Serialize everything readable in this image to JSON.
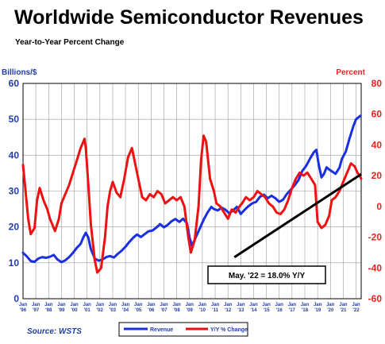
{
  "title": "Worldwide Semiconductor Revenues",
  "subtitle": "Year-to-Year Percent Change",
  "source": "Source: WSTS",
  "colors": {
    "revenue": "#1a2fe0",
    "yoy": "#ee1111",
    "left_axis": "#1f3da8",
    "right_axis": "#e8231f",
    "grid": "#9a9a9a"
  },
  "chart_data": {
    "type": "line",
    "title": "Worldwide Semiconductor Revenues",
    "subtitle": "Year-to-Year Percent Change",
    "left_axis": {
      "label": "Billions/$",
      "range": [
        0,
        60
      ],
      "ticks": [
        "0",
        "10",
        "20",
        "30",
        "40",
        "50",
        "60"
      ]
    },
    "right_axis": {
      "label": "Percent",
      "range": [
        -60,
        80
      ],
      "ticks": [
        "-60",
        "-40",
        "-20",
        "0",
        "20",
        "40",
        "60",
        "80"
      ]
    },
    "x_range": [
      1996,
      2022.4
    ],
    "x_ticks": [
      {
        "top": "Jan",
        "bottom": "'96",
        "x": 1996
      },
      {
        "top": "Jan",
        "bottom": "'97",
        "x": 1997
      },
      {
        "top": "Jan",
        "bottom": "'98",
        "x": 1998
      },
      {
        "top": "Jan",
        "bottom": "'99",
        "x": 1999
      },
      {
        "top": "Jan",
        "bottom": "'00",
        "x": 2000
      },
      {
        "top": "Jan",
        "bottom": "'01",
        "x": 2001
      },
      {
        "top": "Jan",
        "bottom": "'02",
        "x": 2002
      },
      {
        "top": "Jan",
        "bottom": "'03",
        "x": 2003
      },
      {
        "top": "Jan",
        "bottom": "'04",
        "x": 2004
      },
      {
        "top": "Jan",
        "bottom": "'05",
        "x": 2005
      },
      {
        "top": "Jan",
        "bottom": "'06",
        "x": 2006
      },
      {
        "top": "Jan",
        "bottom": "'07",
        "x": 2007
      },
      {
        "top": "Jan",
        "bottom": "'08",
        "x": 2008
      },
      {
        "top": "Jan",
        "bottom": "'09",
        "x": 2009
      },
      {
        "top": "Jan",
        "bottom": "'10",
        "x": 2010
      },
      {
        "top": "Jan",
        "bottom": "'11",
        "x": 2011
      },
      {
        "top": "Jan",
        "bottom": "'12",
        "x": 2012
      },
      {
        "top": "Jan",
        "bottom": "'13",
        "x": 2013
      },
      {
        "top": "Jan",
        "bottom": "'14",
        "x": 2014
      },
      {
        "top": "Jan",
        "bottom": "'15",
        "x": 2015
      },
      {
        "top": "Jan",
        "bottom": "'16",
        "x": 2016
      },
      {
        "top": "Jan",
        "bottom": "'17",
        "x": 2017
      },
      {
        "top": "Jan",
        "bottom": "'18",
        "x": 2018
      },
      {
        "top": "Jan",
        "bottom": "'19",
        "x": 2019
      },
      {
        "top": "Jan",
        "bottom": "'20",
        "x": 2020
      },
      {
        "top": "Jan",
        "bottom": "'21",
        "x": 2021
      },
      {
        "top": "Jan",
        "bottom": "'22",
        "x": 2022
      }
    ],
    "grid": true,
    "legend_placement": "bottom",
    "series": [
      {
        "name": "Revenue",
        "axis": "left",
        "points": [
          [
            1996.0,
            12.8
          ],
          [
            1996.3,
            11.8
          ],
          [
            1996.6,
            10.5
          ],
          [
            1996.9,
            10.3
          ],
          [
            1997.2,
            11.2
          ],
          [
            1997.5,
            11.6
          ],
          [
            1997.8,
            11.4
          ],
          [
            1998.1,
            11.7
          ],
          [
            1998.4,
            12.2
          ],
          [
            1998.7,
            10.9
          ],
          [
            1999.0,
            10.2
          ],
          [
            1999.3,
            10.7
          ],
          [
            1999.6,
            11.6
          ],
          [
            1999.9,
            12.8
          ],
          [
            2000.2,
            14.2
          ],
          [
            2000.5,
            15.3
          ],
          [
            2000.7,
            17.0
          ],
          [
            2000.9,
            18.4
          ],
          [
            2001.1,
            17.0
          ],
          [
            2001.3,
            13.8
          ],
          [
            2001.6,
            11.2
          ],
          [
            2001.9,
            10.6
          ],
          [
            2002.2,
            10.9
          ],
          [
            2002.5,
            11.6
          ],
          [
            2002.8,
            11.9
          ],
          [
            2003.1,
            11.5
          ],
          [
            2003.4,
            12.5
          ],
          [
            2003.7,
            13.4
          ],
          [
            2004.0,
            14.5
          ],
          [
            2004.3,
            15.8
          ],
          [
            2004.6,
            17.0
          ],
          [
            2004.9,
            17.9
          ],
          [
            2005.2,
            17.2
          ],
          [
            2005.5,
            18.0
          ],
          [
            2005.8,
            18.8
          ],
          [
            2006.1,
            19.0
          ],
          [
            2006.4,
            19.8
          ],
          [
            2006.7,
            20.8
          ],
          [
            2007.0,
            19.9
          ],
          [
            2007.3,
            20.6
          ],
          [
            2007.6,
            21.6
          ],
          [
            2007.9,
            22.2
          ],
          [
            2008.2,
            21.4
          ],
          [
            2008.5,
            22.3
          ],
          [
            2008.8,
            21.0
          ],
          [
            2009.0,
            17.0
          ],
          [
            2009.2,
            14.8
          ],
          [
            2009.5,
            17.2
          ],
          [
            2009.8,
            19.6
          ],
          [
            2010.1,
            22.0
          ],
          [
            2010.4,
            24.0
          ],
          [
            2010.7,
            25.6
          ],
          [
            2010.9,
            25.0
          ],
          [
            2011.2,
            24.6
          ],
          [
            2011.5,
            25.4
          ],
          [
            2011.8,
            24.8
          ],
          [
            2012.1,
            23.8
          ],
          [
            2012.4,
            24.6
          ],
          [
            2012.7,
            25.6
          ],
          [
            2013.0,
            23.6
          ],
          [
            2013.3,
            24.8
          ],
          [
            2013.6,
            25.8
          ],
          [
            2013.9,
            26.6
          ],
          [
            2014.2,
            27.0
          ],
          [
            2014.5,
            28.4
          ],
          [
            2014.8,
            29.0
          ],
          [
            2015.1,
            28.0
          ],
          [
            2015.4,
            28.7
          ],
          [
            2015.7,
            28.0
          ],
          [
            2016.0,
            27.0
          ],
          [
            2016.3,
            27.6
          ],
          [
            2016.6,
            29.2
          ],
          [
            2016.9,
            30.4
          ],
          [
            2017.2,
            31.6
          ],
          [
            2017.5,
            33.0
          ],
          [
            2017.8,
            35.6
          ],
          [
            2018.1,
            37.0
          ],
          [
            2018.4,
            39.0
          ],
          [
            2018.7,
            40.8
          ],
          [
            2018.9,
            41.5
          ],
          [
            2019.1,
            37.2
          ],
          [
            2019.3,
            33.8
          ],
          [
            2019.5,
            34.8
          ],
          [
            2019.7,
            36.6
          ],
          [
            2019.9,
            36.0
          ],
          [
            2020.2,
            35.3
          ],
          [
            2020.4,
            34.8
          ],
          [
            2020.7,
            36.5
          ],
          [
            2020.9,
            39.0
          ],
          [
            2021.2,
            41.0
          ],
          [
            2021.5,
            44.8
          ],
          [
            2021.8,
            48.2
          ],
          [
            2022.0,
            50.0
          ],
          [
            2022.2,
            50.6
          ],
          [
            2022.35,
            51.0
          ]
        ]
      },
      {
        "name": "Y/Y % Change",
        "axis": "right",
        "points": [
          [
            1996.0,
            27
          ],
          [
            1996.2,
            10
          ],
          [
            1996.4,
            -8
          ],
          [
            1996.6,
            -18
          ],
          [
            1996.9,
            -14
          ],
          [
            1997.1,
            4
          ],
          [
            1997.3,
            12
          ],
          [
            1997.6,
            4
          ],
          [
            1997.9,
            -2
          ],
          [
            1998.1,
            -8
          ],
          [
            1998.3,
            -12
          ],
          [
            1998.5,
            -16
          ],
          [
            1998.8,
            -8
          ],
          [
            1999.0,
            2
          ],
          [
            1999.3,
            8
          ],
          [
            1999.6,
            14
          ],
          [
            1999.9,
            22
          ],
          [
            2000.2,
            30
          ],
          [
            2000.5,
            38
          ],
          [
            2000.8,
            44
          ],
          [
            2000.9,
            38
          ],
          [
            2001.1,
            14
          ],
          [
            2001.3,
            -12
          ],
          [
            2001.6,
            -35
          ],
          [
            2001.8,
            -43
          ],
          [
            2002.1,
            -40
          ],
          [
            2002.4,
            -20
          ],
          [
            2002.6,
            0
          ],
          [
            2002.8,
            10
          ],
          [
            2003.0,
            16
          ],
          [
            2003.3,
            9
          ],
          [
            2003.6,
            6
          ],
          [
            2003.9,
            18
          ],
          [
            2004.2,
            32
          ],
          [
            2004.5,
            38
          ],
          [
            2004.7,
            30
          ],
          [
            2005.0,
            18
          ],
          [
            2005.3,
            6
          ],
          [
            2005.6,
            4
          ],
          [
            2005.9,
            8
          ],
          [
            2006.2,
            6
          ],
          [
            2006.5,
            10
          ],
          [
            2006.8,
            8
          ],
          [
            2007.1,
            2
          ],
          [
            2007.4,
            4
          ],
          [
            2007.7,
            6
          ],
          [
            2008.0,
            4
          ],
          [
            2008.3,
            6
          ],
          [
            2008.6,
            0
          ],
          [
            2008.9,
            -20
          ],
          [
            2009.1,
            -30
          ],
          [
            2009.4,
            -22
          ],
          [
            2009.7,
            0
          ],
          [
            2009.9,
            30
          ],
          [
            2010.1,
            46
          ],
          [
            2010.3,
            42
          ],
          [
            2010.6,
            18
          ],
          [
            2010.9,
            10
          ],
          [
            2011.1,
            2
          ],
          [
            2011.4,
            0
          ],
          [
            2011.7,
            -4
          ],
          [
            2012.0,
            -8
          ],
          [
            2012.3,
            -2
          ],
          [
            2012.6,
            -4
          ],
          [
            2012.9,
            0
          ],
          [
            2013.1,
            2
          ],
          [
            2013.4,
            6
          ],
          [
            2013.7,
            4
          ],
          [
            2014.0,
            6
          ],
          [
            2014.3,
            10
          ],
          [
            2014.6,
            8
          ],
          [
            2014.9,
            6
          ],
          [
            2015.2,
            2
          ],
          [
            2015.5,
            0
          ],
          [
            2015.8,
            -4
          ],
          [
            2016.1,
            -5
          ],
          [
            2016.4,
            -2
          ],
          [
            2016.7,
            4
          ],
          [
            2017.0,
            12
          ],
          [
            2017.3,
            18
          ],
          [
            2017.6,
            22
          ],
          [
            2017.9,
            20
          ],
          [
            2018.2,
            22
          ],
          [
            2018.5,
            18
          ],
          [
            2018.8,
            14
          ],
          [
            2019.0,
            -10
          ],
          [
            2019.3,
            -14
          ],
          [
            2019.6,
            -12
          ],
          [
            2019.9,
            -6
          ],
          [
            2020.1,
            4
          ],
          [
            2020.4,
            6
          ],
          [
            2020.7,
            10
          ],
          [
            2020.9,
            14
          ],
          [
            2021.1,
            18
          ],
          [
            2021.4,
            24
          ],
          [
            2021.6,
            28
          ],
          [
            2021.9,
            26
          ],
          [
            2022.1,
            22
          ],
          [
            2022.3,
            20
          ],
          [
            2022.4,
            18
          ]
        ]
      }
    ],
    "annotation": {
      "text": "May. '22 = 18.0% Y/Y",
      "from": [
        2012.5,
        -33
      ],
      "to": [
        2022.4,
        21
      ]
    }
  }
}
